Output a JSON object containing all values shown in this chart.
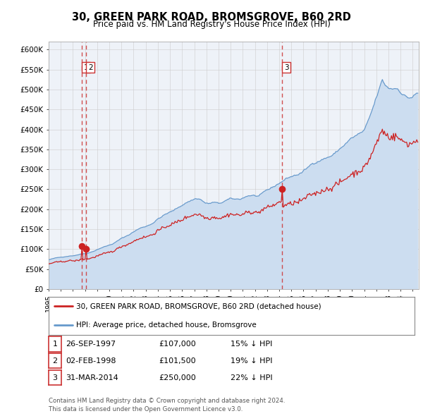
{
  "title": "30, GREEN PARK ROAD, BROMSGROVE, B60 2RD",
  "subtitle": "Price paid vs. HM Land Registry's House Price Index (HPI)",
  "title_fontsize": 10.5,
  "subtitle_fontsize": 8.5,
  "xlim_start": 1995.0,
  "xlim_end": 2025.5,
  "ylim_min": 0,
  "ylim_max": 620000,
  "yticks": [
    0,
    50000,
    100000,
    150000,
    200000,
    250000,
    300000,
    350000,
    400000,
    450000,
    500000,
    550000,
    600000
  ],
  "ytick_labels": [
    "£0",
    "£50K",
    "£100K",
    "£150K",
    "£200K",
    "£250K",
    "£300K",
    "£350K",
    "£400K",
    "£450K",
    "£500K",
    "£550K",
    "£600K"
  ],
  "hpi_color": "#6699cc",
  "hpi_fill_color": "#ccddf0",
  "price_color": "#cc2222",
  "dashed_line_color": "#cc3333",
  "plot_bg_color": "#eef2f8",
  "sale1_date": 1997.74,
  "sale1_price": 107000,
  "sale2_date": 1998.09,
  "sale2_price": 101500,
  "sale3_date": 2014.25,
  "sale3_price": 250000,
  "legend_label_red": "30, GREEN PARK ROAD, BROMSGROVE, B60 2RD (detached house)",
  "legend_label_blue": "HPI: Average price, detached house, Bromsgrove",
  "table_rows": [
    {
      "num": "1",
      "date": "26-SEP-1997",
      "price": "£107,000",
      "hpi": "15% ↓ HPI"
    },
    {
      "num": "2",
      "date": "02-FEB-1998",
      "price": "£101,500",
      "hpi": "19% ↓ HPI"
    },
    {
      "num": "3",
      "date": "31-MAR-2014",
      "price": "£250,000",
      "hpi": "22% ↓ HPI"
    }
  ],
  "footer": "Contains HM Land Registry data © Crown copyright and database right 2024.\nThis data is licensed under the Open Government Licence v3.0."
}
